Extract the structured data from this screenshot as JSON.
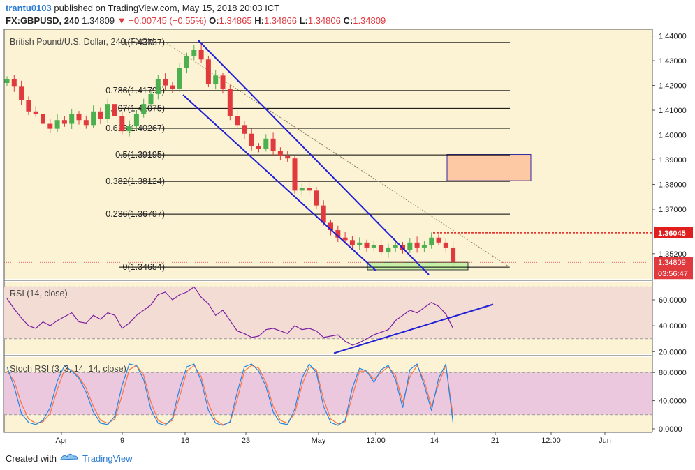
{
  "header": {
    "author": "trantu0103",
    "published_text": "published on TradingView.com, May 15, 2018 20:03 ICT",
    "symbol": "FX:GBPUSD, 240",
    "last": "1.34809",
    "change": "−0.00745 (−0.55%)",
    "open_label": "O:",
    "open": "1.34865",
    "high_label": "H:",
    "high": "1.34866",
    "low_label": "L:",
    "low": "1.34806",
    "close_label": "C:",
    "close": "1.34809"
  },
  "footer": {
    "created_with": "Created with",
    "brand": "TradingView"
  },
  "colors": {
    "bg": "#fcf3d4",
    "up": "#4caf50",
    "down": "#e0393e",
    "fib": "#000000",
    "channel": "#1f1fd8",
    "rsi_line": "#7b1fa2",
    "rsi_band": "#f3dcd3",
    "stoch_band": "#ecc8df",
    "stoch_k": "#1e88e5",
    "stoch_d": "#ff7043",
    "zone": "#fdc9a4",
    "buy_zone": "#c6efa7",
    "resistance": "#e01e1e"
  },
  "chart_data": [
    {
      "type": "candlestick",
      "title": "British Pound/U.S. Dollar, 240, FXCM",
      "y_ticks": [
        "1.44000",
        "1.43000",
        "1.42000",
        "1.41000",
        "1.40000",
        "1.39000",
        "1.38000",
        "1.37000",
        "1.35200"
      ],
      "ylim": [
        1.3418,
        1.4427
      ],
      "x_ticks": [
        "Apr",
        "9",
        "16",
        "23",
        "May",
        "12:00",
        "14",
        "21",
        "12:00",
        "Jun"
      ],
      "price_labels": {
        "resistance": "1.36045",
        "last": "1.34809",
        "countdown": "03:56:47"
      },
      "fib_levels": [
        {
          "label": "1(1.43737)",
          "value": 1.43737
        },
        {
          "label": "0.786(1.41793)",
          "value": 1.41793
        },
        {
          "label": "0.707(1.41075)",
          "value": 1.41075
        },
        {
          "label": "0.618(1.40267)",
          "value": 1.40267
        },
        {
          "label": "0.5(1.39195)",
          "value": 1.39195
        },
        {
          "label": "0.382(1.38124)",
          "value": 1.38124
        },
        {
          "label": "0.236(1.36797)",
          "value": 1.36797
        },
        {
          "label": "0(1.34654)",
          "value": 1.34654
        }
      ],
      "resistance": 1.36045,
      "sell_zone": [
        1.3815,
        1.3921
      ],
      "buy_zone": [
        1.3466,
        1.3485
      ],
      "close_path": [
        1.4225,
        1.4195,
        1.414,
        1.4095,
        1.4085,
        1.4045,
        1.4025,
        1.406,
        1.4045,
        1.4085,
        1.406,
        1.404,
        1.4095,
        1.4065,
        1.4125,
        1.4075,
        1.4015,
        1.4035,
        1.4085,
        1.4125,
        1.4165,
        1.4225,
        1.42,
        1.4185,
        1.427,
        1.432,
        1.4345,
        1.4305,
        1.4205,
        1.424,
        1.4185,
        1.4075,
        1.404,
        1.4005,
        1.3955,
        1.3945,
        1.3985,
        1.3935,
        1.3915,
        1.3905,
        1.3775,
        1.3785,
        1.3775,
        1.3715,
        1.3645,
        1.3615,
        1.3585,
        1.3575,
        1.3555,
        1.3565,
        1.3545,
        1.3555,
        1.3525,
        1.3545,
        1.3555,
        1.3535,
        1.3565,
        1.3545,
        1.3555,
        1.3585,
        1.3565,
        1.3545,
        1.3485
      ]
    },
    {
      "type": "line",
      "title": "RSI (14, close)",
      "y_ticks": [
        "60.0000",
        "40.0000",
        "20.0000"
      ],
      "ylim": [
        18,
        74
      ],
      "band": [
        30,
        70
      ],
      "values": [
        61,
        53,
        46,
        40,
        38,
        43,
        40,
        44,
        47,
        50,
        43,
        42,
        48,
        45,
        50,
        48,
        38,
        42,
        48,
        52,
        56,
        64,
        66,
        60,
        64,
        66,
        70,
        62,
        57,
        48,
        52,
        44,
        36,
        34,
        31,
        32,
        37,
        38,
        36,
        34,
        40,
        37,
        38,
        36,
        31,
        32,
        33,
        28,
        25,
        27,
        30,
        33,
        35,
        37,
        44,
        48,
        52,
        50,
        54,
        58,
        55,
        49,
        38
      ]
    },
    {
      "type": "line",
      "title": "Stoch RSI (3, 3, 14, 14, close)",
      "y_ticks": [
        "80.0000",
        "40.0000",
        "0.0000"
      ],
      "ylim": [
        -5,
        102
      ],
      "band": [
        20,
        80
      ],
      "k": [
        88,
        60,
        22,
        9,
        6,
        12,
        30,
        68,
        90,
        82,
        72,
        52,
        24,
        8,
        6,
        18,
        62,
        92,
        90,
        70,
        28,
        8,
        5,
        15,
        58,
        88,
        92,
        68,
        26,
        8,
        5,
        10,
        52,
        88,
        92,
        82,
        60,
        24,
        8,
        6,
        28,
        72,
        92,
        80,
        32,
        9,
        5,
        12,
        58,
        86,
        82,
        66,
        84,
        90,
        70,
        30,
        84,
        92,
        62,
        26,
        72,
        92,
        8
      ],
      "d": [
        82,
        68,
        36,
        14,
        8,
        10,
        22,
        56,
        84,
        84,
        74,
        58,
        32,
        12,
        8,
        14,
        48,
        84,
        90,
        76,
        38,
        12,
        7,
        12,
        46,
        82,
        90,
        74,
        36,
        12,
        6,
        9,
        42,
        82,
        90,
        86,
        66,
        32,
        12,
        8,
        22,
        62,
        88,
        84,
        42,
        14,
        7,
        10,
        46,
        82,
        82,
        70,
        80,
        88,
        76,
        38,
        74,
        90,
        68,
        32,
        64,
        90,
        18
      ]
    }
  ]
}
